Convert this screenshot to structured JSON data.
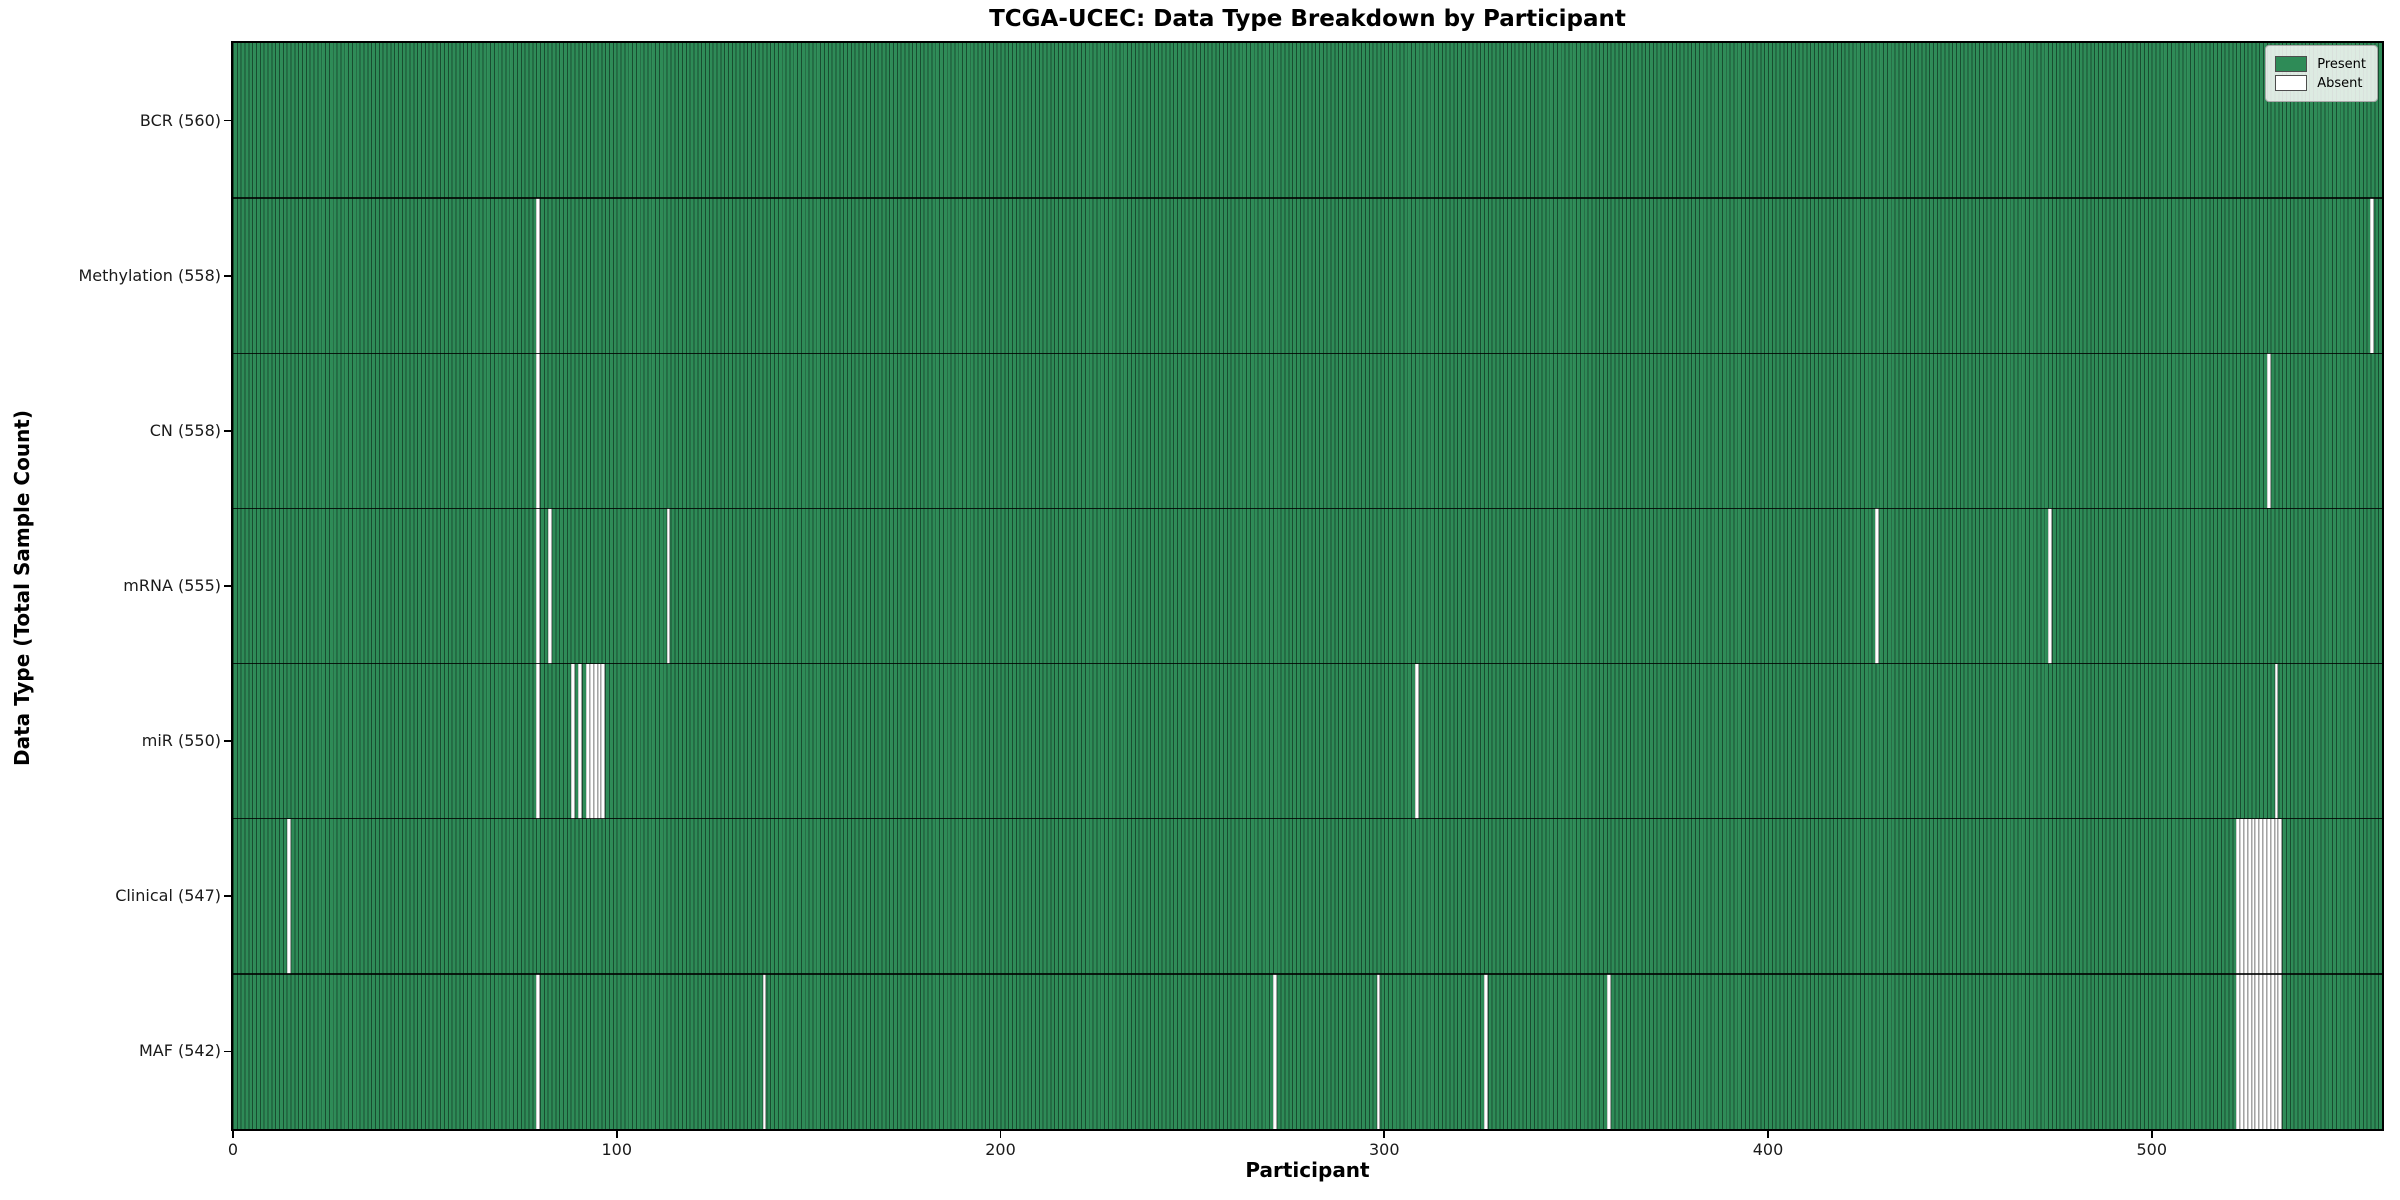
{
  "title": "TCGA-UCEC: Data Type Breakdown by Participant",
  "x_axis_label": "Participant",
  "y_axis_label": "Data Type (Total Sample Count)",
  "colors": {
    "present": "#2e8b57",
    "absent": "#ffffff",
    "bar_edge": "#1b4d33",
    "boundary": "#000000"
  },
  "chart_data": {
    "type": "heatmap",
    "title": "TCGA-UCEC: Data Type Breakdown by Participant",
    "xlabel": "Participant",
    "ylabel": "Data Type (Total Sample Count)",
    "grid": false,
    "legend_position": "upper right",
    "x_axis": {
      "min": 0,
      "max": 560,
      "ticks": [
        0,
        100,
        200,
        300,
        400,
        500
      ]
    },
    "total_participants": 560,
    "cell_states": {
      "present": "green",
      "absent": "white"
    },
    "rows": [
      {
        "name": "BCR",
        "label": "BCR (560)",
        "count": 560,
        "absent": []
      },
      {
        "name": "Methylation",
        "label": "Methylation (558)",
        "count": 558,
        "absent": [
          79,
          557
        ]
      },
      {
        "name": "CN",
        "label": "CN (558)",
        "count": 558,
        "absent": [
          79,
          530
        ]
      },
      {
        "name": "mRNA",
        "label": "mRNA (555)",
        "count": 555,
        "absent": [
          79,
          82,
          113,
          428,
          473
        ]
      },
      {
        "name": "miR",
        "label": "miR (550)",
        "count": 550,
        "absent": [
          79,
          88,
          90,
          92,
          93,
          94,
          95,
          96,
          308,
          532
        ]
      },
      {
        "name": "Clinical",
        "label": "Clinical (547)",
        "count": 547,
        "absent": [
          14,
          522,
          523,
          524,
          525,
          526,
          527,
          528,
          529,
          530,
          531,
          532,
          533
        ]
      },
      {
        "name": "MAF",
        "label": "MAF (542)",
        "count": 542,
        "absent": [
          79,
          138,
          271,
          298,
          326,
          358,
          522,
          523,
          524,
          525,
          526,
          527,
          528,
          529,
          530,
          531,
          532,
          533
        ]
      }
    ],
    "legend": [
      {
        "label": "Present",
        "color": "#2e8b57"
      },
      {
        "label": "Absent",
        "color": "#ffffff"
      }
    ]
  }
}
